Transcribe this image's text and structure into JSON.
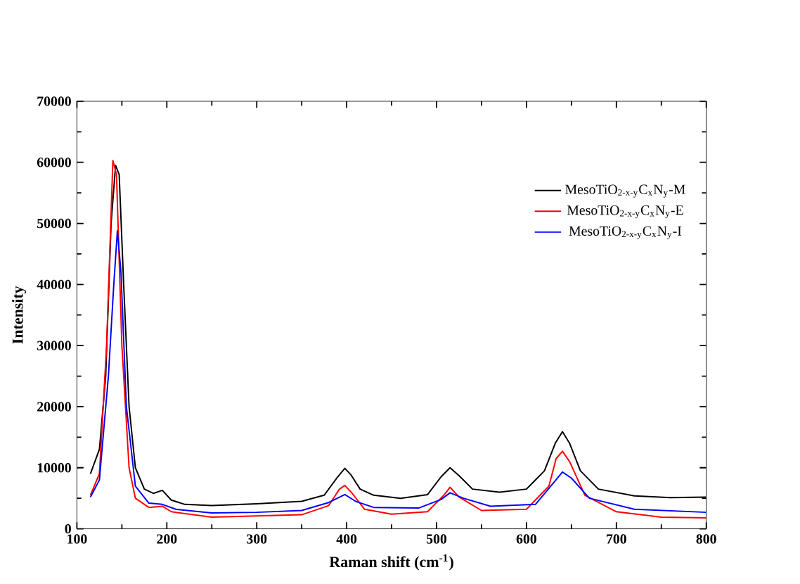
{
  "chart_data": {
    "type": "line",
    "xlabel": "Raman shift (cm$^{-1}$)",
    "ylabel": "Intensity",
    "xlim": [
      100,
      800
    ],
    "ylim": [
      0,
      70000
    ],
    "xticks": [
      100,
      200,
      300,
      400,
      500,
      600,
      700,
      800
    ],
    "yticks": [
      0,
      10000,
      20000,
      30000,
      40000,
      50000,
      60000,
      70000
    ],
    "legend": "top right",
    "grid": false,
    "marker": "none",
    "line_style": "solid",
    "series": [
      {
        "name": "MesoTiO$_{2-x-y}$C$_{x}$N$_{y}$-M",
        "color": "#000000",
        "x": [
          115,
          125,
          132,
          138,
          143,
          147,
          152,
          158,
          165,
          175,
          185,
          195,
          205,
          220,
          250,
          300,
          350,
          375,
          390,
          398,
          405,
          415,
          430,
          460,
          490,
          505,
          515,
          525,
          540,
          570,
          600,
          620,
          632,
          640,
          648,
          660,
          680,
          720,
          760,
          800
        ],
        "values": [
          9000,
          13000,
          25000,
          50000,
          59500,
          58000,
          40000,
          20000,
          10000,
          6500,
          5800,
          6300,
          4700,
          4000,
          3800,
          4100,
          4500,
          5500,
          8500,
          9900,
          8800,
          6500,
          5500,
          5000,
          5600,
          8500,
          10000,
          8700,
          6500,
          6000,
          6500,
          9500,
          14000,
          15900,
          14000,
          9500,
          6500,
          5400,
          5100,
          5200
        ]
      },
      {
        "name": "MesoTiO$_{2-x-y}$C$_{x}$N$_{y}$-E",
        "color": "#ff0000",
        "x": [
          115,
          125,
          133,
          140,
          144,
          150,
          158,
          165,
          180,
          195,
          205,
          250,
          300,
          350,
          380,
          392,
          398,
          405,
          420,
          450,
          490,
          508,
          515,
          525,
          550,
          600,
          625,
          633,
          640,
          648,
          665,
          700,
          750,
          800
        ],
        "values": [
          5500,
          9000,
          30000,
          60300,
          58000,
          30000,
          10000,
          5000,
          3500,
          3700,
          2800,
          1900,
          2100,
          2300,
          3800,
          6500,
          7100,
          6000,
          3200,
          2400,
          2800,
          5500,
          6800,
          5200,
          3000,
          3200,
          7000,
          11500,
          12700,
          11000,
          5500,
          2800,
          1900,
          1800
        ]
      },
      {
        "name": "MesoTiO$_{2-x-y}$C$_{x}$N$_{y}$-I",
        "color": "#0000ff",
        "x": [
          115,
          125,
          135,
          141,
          145,
          149,
          155,
          165,
          180,
          195,
          210,
          250,
          300,
          350,
          380,
          398,
          410,
          430,
          480,
          505,
          515,
          530,
          560,
          610,
          630,
          640,
          650,
          670,
          720,
          800
        ],
        "values": [
          5200,
          8000,
          25000,
          40000,
          48800,
          42000,
          20000,
          7000,
          4200,
          4000,
          3200,
          2600,
          2700,
          3000,
          4300,
          5600,
          4500,
          3500,
          3400,
          4800,
          5900,
          5000,
          3700,
          4000,
          7500,
          9300,
          8300,
          5000,
          3200,
          2700
        ]
      }
    ]
  }
}
